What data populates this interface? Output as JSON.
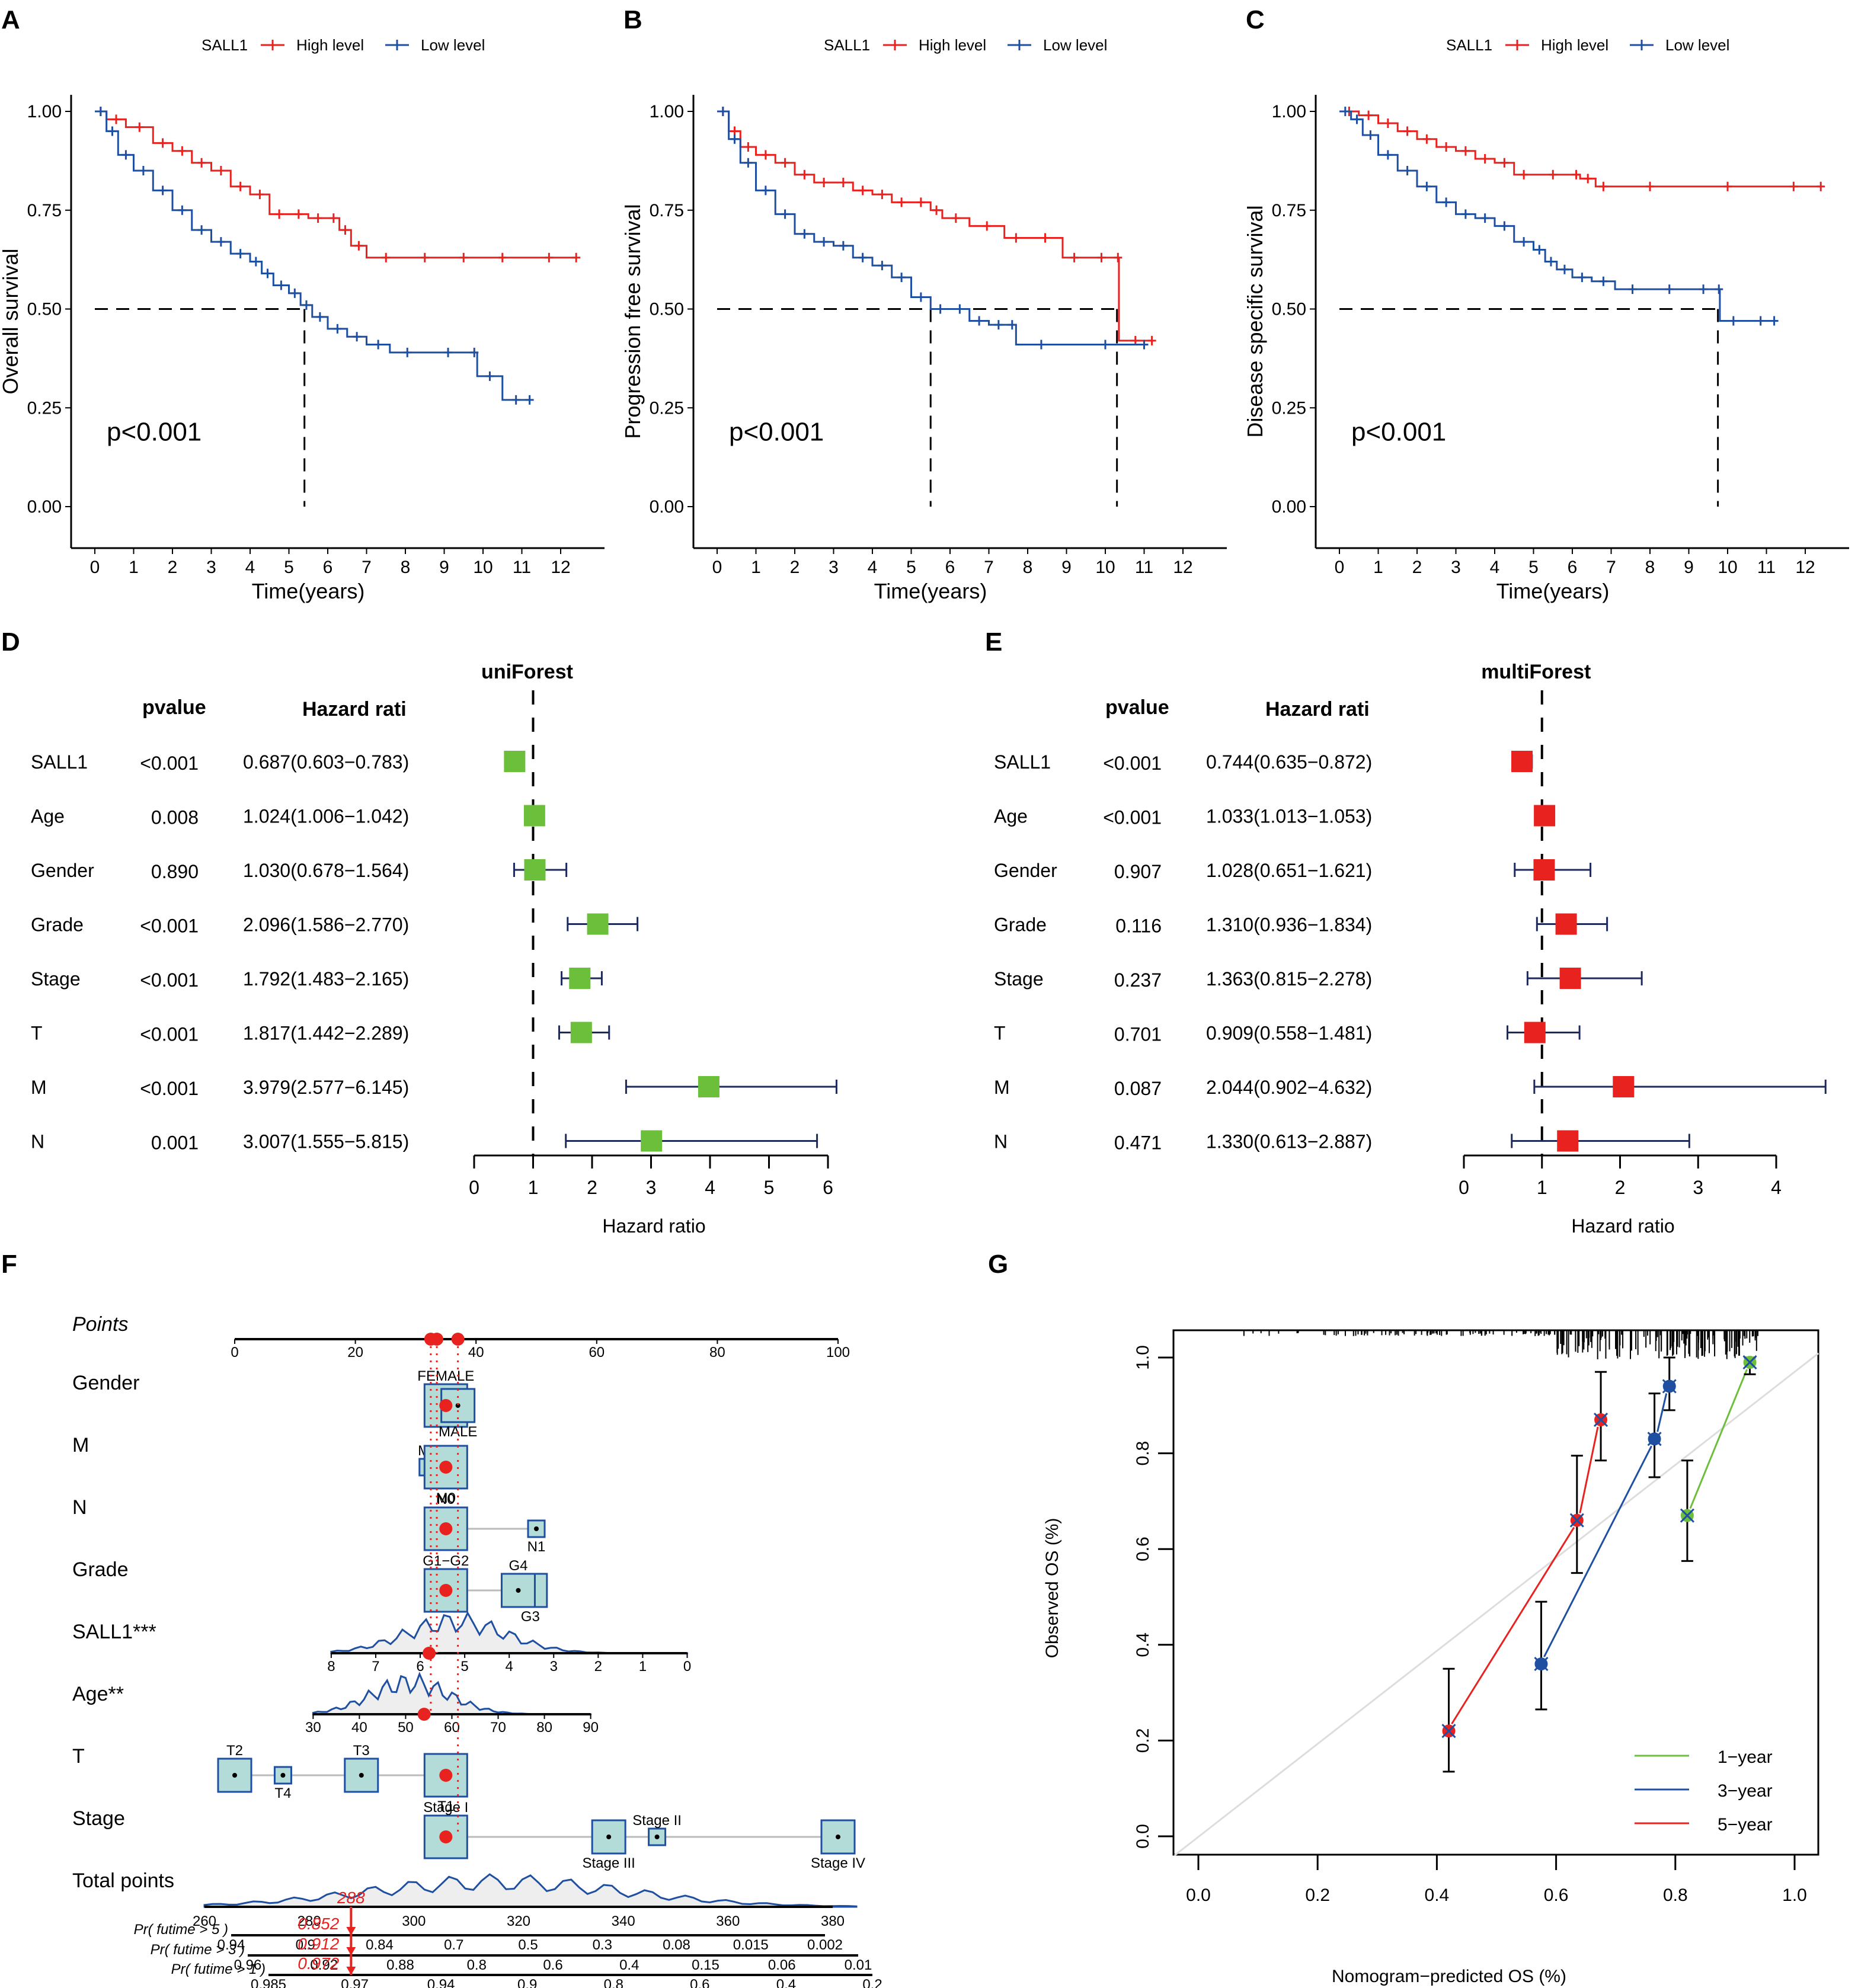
{
  "panels": {
    "A": "A",
    "B": "B",
    "C": "C",
    "D": "D",
    "E": "E",
    "F": "F",
    "G": "G"
  },
  "colors": {
    "high": "#e8221f",
    "low": "#1f4fa0",
    "green": "#6cbf3a",
    "box_fill": "#b3dcd8",
    "box_stroke": "#1f4fa0",
    "density_fill": "#eeeeee"
  },
  "chart_data": [
    {
      "id": "A",
      "type": "line",
      "subtype": "kaplan-meier",
      "legend_title": "SALL1",
      "legend_placement": "top",
      "xlabel": "Time(years)",
      "ylabel": "Overall survival",
      "xlim": [
        0,
        12.5
      ],
      "ylim": [
        0,
        1
      ],
      "xticks": [
        "0",
        "1",
        "2",
        "3",
        "4",
        "5",
        "6",
        "7",
        "8",
        "9",
        "10",
        "11",
        "12"
      ],
      "yticks": [
        "0.00",
        "0.25",
        "0.50",
        "0.75",
        "1.00"
      ],
      "annotation": "p<0.001",
      "median_lines": [
        5.4
      ],
      "series": [
        {
          "name": "High level",
          "x": [
            0,
            0.3,
            0.8,
            1.5,
            2.0,
            2.5,
            3.0,
            3.5,
            4.0,
            4.5,
            5.0,
            5.5,
            6.0,
            6.3,
            6.6,
            7.0,
            8.0,
            9.0,
            10.0,
            11.0,
            12.4
          ],
          "y": [
            1.0,
            0.98,
            0.96,
            0.92,
            0.9,
            0.87,
            0.85,
            0.81,
            0.79,
            0.74,
            0.74,
            0.73,
            0.73,
            0.7,
            0.66,
            0.63,
            0.63,
            0.63,
            0.63,
            0.63,
            0.63
          ]
        },
        {
          "name": "Low level",
          "x": [
            0,
            0.3,
            0.6,
            1.0,
            1.5,
            2.0,
            2.5,
            3.0,
            3.5,
            4.0,
            4.3,
            4.6,
            5.0,
            5.3,
            5.6,
            6.0,
            6.5,
            7.0,
            7.6,
            8.5,
            9.7,
            9.85,
            10.5,
            11.2
          ],
          "y": [
            1.0,
            0.95,
            0.89,
            0.85,
            0.8,
            0.75,
            0.7,
            0.67,
            0.64,
            0.62,
            0.59,
            0.56,
            0.54,
            0.51,
            0.48,
            0.45,
            0.43,
            0.41,
            0.39,
            0.39,
            0.39,
            0.33,
            0.27,
            0.27
          ]
        }
      ]
    },
    {
      "id": "B",
      "type": "line",
      "subtype": "kaplan-meier",
      "legend_title": "SALL1",
      "legend_placement": "top",
      "xlabel": "Time(years)",
      "ylabel": "Progression free survival",
      "xlim": [
        0,
        12.5
      ],
      "ylim": [
        0,
        1
      ],
      "xticks": [
        "0",
        "1",
        "2",
        "3",
        "4",
        "5",
        "6",
        "7",
        "8",
        "9",
        "10",
        "11",
        "12"
      ],
      "yticks": [
        "0.00",
        "0.25",
        "0.50",
        "0.75",
        "1.00"
      ],
      "annotation": "p<0.001",
      "median_lines": [
        5.5,
        10.3
      ],
      "series": [
        {
          "name": "High level",
          "x": [
            0,
            0.3,
            0.6,
            1.0,
            1.5,
            2.0,
            2.5,
            3.0,
            3.5,
            4.0,
            4.5,
            5.0,
            5.5,
            5.8,
            6.5,
            7.4,
            8.0,
            8.9,
            9.5,
            10.3,
            10.35,
            11.2
          ],
          "y": [
            1.0,
            0.95,
            0.91,
            0.89,
            0.87,
            0.84,
            0.82,
            0.82,
            0.8,
            0.79,
            0.77,
            0.77,
            0.75,
            0.73,
            0.71,
            0.68,
            0.68,
            0.63,
            0.63,
            0.63,
            0.42,
            0.42
          ]
        },
        {
          "name": "Low level",
          "x": [
            0,
            0.3,
            0.6,
            1.0,
            1.5,
            2.0,
            2.5,
            3.0,
            3.5,
            4.0,
            4.5,
            5.0,
            5.5,
            6.0,
            6.5,
            7.0,
            7.5,
            7.7,
            9.0,
            11.0
          ],
          "y": [
            1.0,
            0.93,
            0.87,
            0.8,
            0.74,
            0.69,
            0.67,
            0.66,
            0.63,
            0.61,
            0.58,
            0.53,
            0.5,
            0.5,
            0.47,
            0.46,
            0.46,
            0.41,
            0.41,
            0.41
          ]
        }
      ]
    },
    {
      "id": "C",
      "type": "line",
      "subtype": "kaplan-meier",
      "legend_title": "SALL1",
      "legend_placement": "top",
      "xlabel": "Time(years)",
      "ylabel": "Disease specific survival",
      "xlim": [
        0,
        12.5
      ],
      "ylim": [
        0,
        1
      ],
      "xticks": [
        "0",
        "1",
        "2",
        "3",
        "4",
        "5",
        "6",
        "7",
        "8",
        "9",
        "10",
        "11",
        "12"
      ],
      "yticks": [
        "0.00",
        "0.25",
        "0.50",
        "0.75",
        "1.00"
      ],
      "annotation": "p<0.001",
      "median_lines": [
        9.75
      ],
      "series": [
        {
          "name": "High level",
          "x": [
            0,
            0.5,
            1.0,
            1.5,
            2.0,
            2.5,
            3.0,
            3.5,
            4.0,
            4.5,
            5.0,
            6.0,
            6.2,
            6.6,
            7.0,
            9.0,
            11.0,
            12.4
          ],
          "y": [
            1.0,
            0.99,
            0.97,
            0.95,
            0.93,
            0.91,
            0.9,
            0.88,
            0.87,
            0.84,
            0.84,
            0.84,
            0.83,
            0.81,
            0.81,
            0.81,
            0.81,
            0.81
          ]
        },
        {
          "name": "Low level",
          "x": [
            0,
            0.3,
            0.6,
            1.0,
            1.5,
            2.0,
            2.5,
            3.0,
            3.5,
            4.0,
            4.5,
            5.0,
            5.3,
            5.6,
            6.0,
            6.5,
            7.1,
            8.0,
            9.0,
            9.75,
            9.8,
            10.5,
            11.2
          ],
          "y": [
            1.0,
            0.98,
            0.94,
            0.89,
            0.85,
            0.81,
            0.77,
            0.74,
            0.73,
            0.71,
            0.67,
            0.65,
            0.62,
            0.6,
            0.58,
            0.57,
            0.55,
            0.55,
            0.55,
            0.55,
            0.47,
            0.47,
            0.47
          ]
        }
      ]
    },
    {
      "id": "D",
      "type": "table",
      "subtype": "forest",
      "title": "uniForest",
      "col_pvalue": "pvalue",
      "col_hr": "Hazard rati",
      "xlabel": "Hazard ratio",
      "xlim": [
        0,
        6
      ],
      "xticks": [
        "0",
        "1",
        "2",
        "3",
        "4",
        "5",
        "6"
      ],
      "ref_line": 1,
      "rows": [
        {
          "label": "SALL1",
          "pvalue": "<0.001",
          "hr_text": "0.687(0.603−0.783)",
          "hr": 0.687,
          "lo": 0.603,
          "hi": 0.783
        },
        {
          "label": "Age",
          "pvalue": "0.008",
          "hr_text": "1.024(1.006−1.042)",
          "hr": 1.024,
          "lo": 1.006,
          "hi": 1.042
        },
        {
          "label": "Gender",
          "pvalue": "0.890",
          "hr_text": "1.030(0.678−1.564)",
          "hr": 1.03,
          "lo": 0.678,
          "hi": 1.564
        },
        {
          "label": "Grade",
          "pvalue": "<0.001",
          "hr_text": "2.096(1.586−2.770)",
          "hr": 2.096,
          "lo": 1.586,
          "hi": 2.77
        },
        {
          "label": "Stage",
          "pvalue": "<0.001",
          "hr_text": "1.792(1.483−2.165)",
          "hr": 1.792,
          "lo": 1.483,
          "hi": 2.165
        },
        {
          "label": "T",
          "pvalue": "<0.001",
          "hr_text": "1.817(1.442−2.289)",
          "hr": 1.817,
          "lo": 1.442,
          "hi": 2.289
        },
        {
          "label": "M",
          "pvalue": "<0.001",
          "hr_text": "3.979(2.577−6.145)",
          "hr": 3.979,
          "lo": 2.577,
          "hi": 6.145
        },
        {
          "label": "N",
          "pvalue": "0.001",
          "hr_text": "3.007(1.555−5.815)",
          "hr": 3.007,
          "lo": 1.555,
          "hi": 5.815
        }
      ]
    },
    {
      "id": "E",
      "type": "table",
      "subtype": "forest",
      "title": "multiForest",
      "col_pvalue": "pvalue",
      "col_hr": "Hazard rati",
      "xlabel": "Hazard ratio",
      "xlim": [
        0,
        4
      ],
      "xticks": [
        "0",
        "1",
        "2",
        "3",
        "4"
      ],
      "ref_line": 1,
      "rows": [
        {
          "label": "SALL1",
          "pvalue": "<0.001",
          "hr_text": "0.744(0.635−0.872)",
          "hr": 0.744,
          "lo": 0.635,
          "hi": 0.872
        },
        {
          "label": "Age",
          "pvalue": "<0.001",
          "hr_text": "1.033(1.013−1.053)",
          "hr": 1.033,
          "lo": 1.013,
          "hi": 1.053
        },
        {
          "label": "Gender",
          "pvalue": "0.907",
          "hr_text": "1.028(0.651−1.621)",
          "hr": 1.028,
          "lo": 0.651,
          "hi": 1.621
        },
        {
          "label": "Grade",
          "pvalue": "0.116",
          "hr_text": "1.310(0.936−1.834)",
          "hr": 1.31,
          "lo": 0.936,
          "hi": 1.834
        },
        {
          "label": "Stage",
          "pvalue": "0.237",
          "hr_text": "1.363(0.815−2.278)",
          "hr": 1.363,
          "lo": 0.815,
          "hi": 2.278
        },
        {
          "label": "T",
          "pvalue": "0.701",
          "hr_text": "0.909(0.558−1.481)",
          "hr": 0.909,
          "lo": 0.558,
          "hi": 1.481
        },
        {
          "label": "M",
          "pvalue": "0.087",
          "hr_text": "2.044(0.902−4.632)",
          "hr": 2.044,
          "lo": 0.902,
          "hi": 4.632
        },
        {
          "label": "N",
          "pvalue": "0.471",
          "hr_text": "1.330(0.613−2.887)",
          "hr": 1.33,
          "lo": 0.613,
          "hi": 2.887
        }
      ]
    },
    {
      "id": "F",
      "type": "table",
      "subtype": "nomogram",
      "points_label": "Points",
      "points_ticks": [
        0,
        20,
        40,
        60,
        80,
        100
      ],
      "variables": [
        {
          "label": "Gender",
          "levels": [
            {
              "name": "FEMALE",
              "points": 35
            },
            {
              "name": "MALE",
              "points": 37
            }
          ],
          "selected_points": 35
        },
        {
          "label": "M",
          "levels": [
            {
              "name": "M1",
              "points": 32
            },
            {
              "name": "M0",
              "points": 35
            }
          ],
          "selected_points": 35
        },
        {
          "label": "N",
          "levels": [
            {
              "name": "N0",
              "points": 35
            },
            {
              "name": "N1",
              "points": 50
            }
          ],
          "selected_points": 35
        },
        {
          "label": "Grade",
          "levels": [
            {
              "name": "G1−G2",
              "points": 35
            },
            {
              "name": "G3",
              "points": 49
            },
            {
              "name": "G4",
              "points": 47
            }
          ],
          "selected_points": 35
        },
        {
          "label": "SALL1***",
          "axis_ticks": [
            "8",
            "7",
            "6",
            "5",
            "4",
            "3",
            "2",
            "1",
            "0"
          ],
          "axis_range_points": [
            16,
            75
          ],
          "selected_value": 5.8
        },
        {
          "label": "Age**",
          "axis_ticks": [
            "30",
            "40",
            "50",
            "60",
            "70",
            "80",
            "90"
          ],
          "axis_range_points": [
            13,
            59
          ],
          "selected_value": 54
        },
        {
          "label": "T",
          "levels": [
            {
              "name": "T2",
              "points": 0
            },
            {
              "name": "T4",
              "points": 8
            },
            {
              "name": "T3",
              "points": 21
            },
            {
              "name": "T1",
              "points": 35
            }
          ],
          "selected_points": 35
        },
        {
          "label": "Stage",
          "levels": [
            {
              "name": "Stage I",
              "points": 35
            },
            {
              "name": "Stage III",
              "points": 62
            },
            {
              "name": "Stage II",
              "points": 70
            },
            {
              "name": "Stage IV",
              "points": 100
            }
          ],
          "selected_points": 35
        }
      ],
      "total_points_label": "Total points",
      "total_ticks": [
        "260",
        "280",
        "300",
        "320",
        "340",
        "360",
        "380"
      ],
      "total_selected": "288",
      "probabilities": [
        {
          "label": "Pr( futime > 5 )",
          "ticks": [
            "0.94",
            "0.9",
            "0.84",
            "0.7",
            "0.5",
            "0.3",
            "0.08",
            "0.015",
            "0.002"
          ],
          "value": "0.852"
        },
        {
          "label": "Pr( futime > 3 )",
          "ticks": [
            "0.96",
            "0.92",
            "0.88",
            "0.8",
            "0.6",
            "0.4",
            "0.15",
            "0.06",
            "0.01"
          ],
          "value": "0.912"
        },
        {
          "label": "Pr( futime > 1 )",
          "ticks": [
            "0.985",
            "0.97",
            "0.94",
            "0.9",
            "0.8",
            "0.6",
            "0.4",
            "0.2"
          ],
          "value": "0.972"
        }
      ]
    },
    {
      "id": "G",
      "type": "scatter",
      "subtype": "calibration",
      "xlabel": "Nomogram−predicted OS (%)",
      "ylabel": "Observed OS (%)",
      "xlim": [
        0,
        1
      ],
      "ylim": [
        0,
        1
      ],
      "xticks": [
        "0.0",
        "0.2",
        "0.4",
        "0.6",
        "0.8",
        "1.0"
      ],
      "yticks": [
        "0.0",
        "0.2",
        "0.4",
        "0.6",
        "0.8",
        "1.0"
      ],
      "legend_placement": "bottom-right",
      "series": [
        {
          "name": "1−year",
          "color": "#6cbf3a",
          "x": [
            0.82,
            0.925
          ],
          "y": [
            0.67,
            0.99
          ],
          "lo": [
            0.575,
            0.965
          ],
          "hi": [
            0.785,
            1.0
          ]
        },
        {
          "name": "3−year",
          "color": "#1f4fa0",
          "x": [
            0.575,
            0.765,
            0.79
          ],
          "y": [
            0.36,
            0.83,
            0.94
          ],
          "lo": [
            0.265,
            0.75,
            0.89
          ],
          "hi": [
            0.49,
            0.925,
            1.0
          ]
        },
        {
          "name": "5−year",
          "color": "#e8221f",
          "x": [
            0.42,
            0.635,
            0.675
          ],
          "y": [
            0.22,
            0.66,
            0.87
          ],
          "lo": [
            0.135,
            0.55,
            0.785
          ],
          "hi": [
            0.35,
            0.795,
            0.97
          ]
        }
      ]
    }
  ]
}
